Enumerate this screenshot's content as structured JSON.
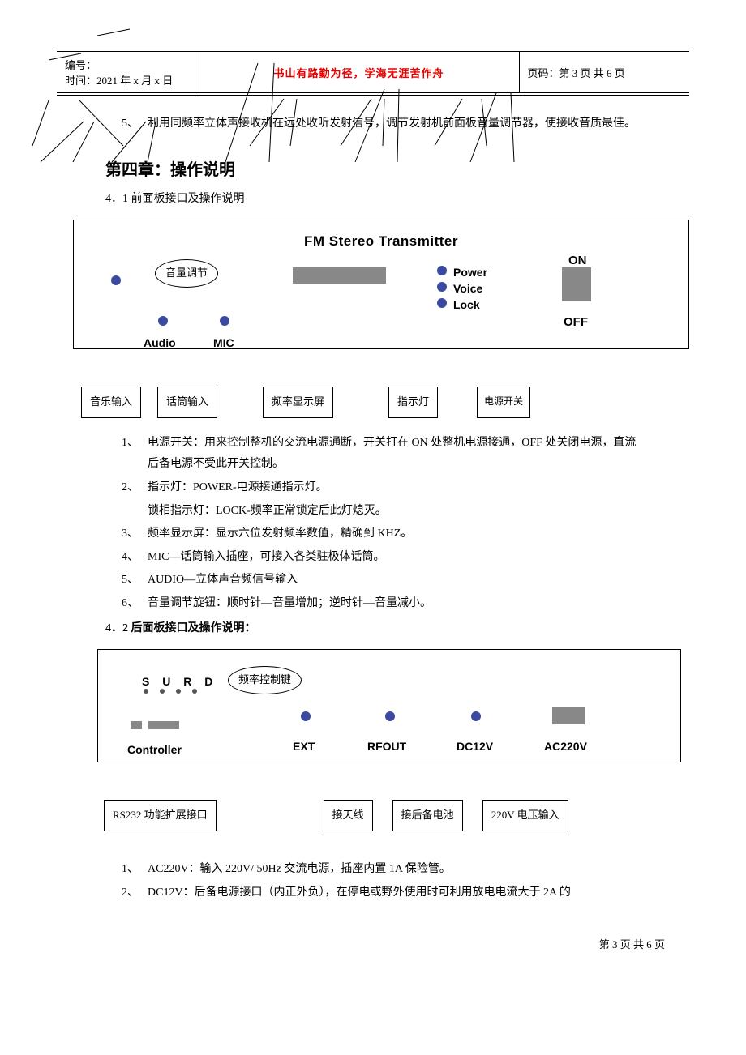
{
  "header": {
    "left_line1": "编号：",
    "left_line2": "时间：2021 年 x 月 x 日",
    "center": "书山有路勤为径，学海无涯苦作舟",
    "right": "页码：第 3 页 共 6 页"
  },
  "intro_item": {
    "num": "5、",
    "text": "利用同频率立体声接收机在远处收听发射信号，调节发射机前面板音量调节器，使接收音质最佳。"
  },
  "chapter4_title": "第四章：操作说明",
  "section41_title": "4．1 前面板接口及操作说明",
  "front_panel": {
    "title": "FM Stereo  Transmitter",
    "volume_label": "音量调节",
    "audio_label": "Audio",
    "mic_label": "MIC",
    "power_label": "Power",
    "voice_label": "Voice",
    "lock_label": "Lock",
    "on_label": "ON",
    "off_label": "OFF",
    "callouts": {
      "music_in": "音乐输入",
      "mic_in": "话筒输入",
      "freq_display": "频率显示屏",
      "indicator": "指示灯",
      "power_switch": "电源开关"
    }
  },
  "front_list": [
    {
      "n": "1、",
      "t": "电源开关：用来控制整机的交流电源通断，开关打在 ON 处整机电源接通，OFF 处关闭电源，直流后备电源不受此开关控制。"
    },
    {
      "n": "2、",
      "t": "指示灯：POWER-电源接通指示灯。"
    },
    {
      "n": "",
      "t": "锁相指示灯：LOCK-频率正常锁定后此灯熄灭。"
    },
    {
      "n": "3、",
      "t": "频率显示屏：显示六位发射频率数值，精确到 KHZ。"
    },
    {
      "n": "4、",
      "t": "MIC—话筒输入插座，可接入各类驻极体话筒。"
    },
    {
      "n": "5、",
      "t": "AUDIO—立体声音频信号输入"
    },
    {
      "n": "6、",
      "t": "音量调节旋钮：顺时针—音量增加；逆时针—音量减小。"
    }
  ],
  "section42_title": "4．2 后面板接口及操作说明：",
  "back_panel": {
    "surd_label": "S U R D",
    "freq_ctrl": "频率控制键",
    "controller_label": "Controller",
    "ext_label": "EXT",
    "rfout_label": "RFOUT",
    "dc12v_label": "DC12V",
    "ac220v_label": "AC220V",
    "callouts": {
      "rs232": "RS232 功能扩展接口",
      "antenna": "接天线",
      "battery": "接后备电池",
      "vin": "220V 电压输入"
    }
  },
  "back_list": [
    {
      "n": "1、",
      "t": "AC220V：输入 220V/ 50Hz 交流电源，插座内置 1A 保险管。"
    },
    {
      "n": "2、",
      "t": "DC12V：后备电源接口（内正外负），在停电或野外使用时可利用放电电流大于 2A 的"
    }
  ],
  "footer": "第 3 页 共 6 页"
}
